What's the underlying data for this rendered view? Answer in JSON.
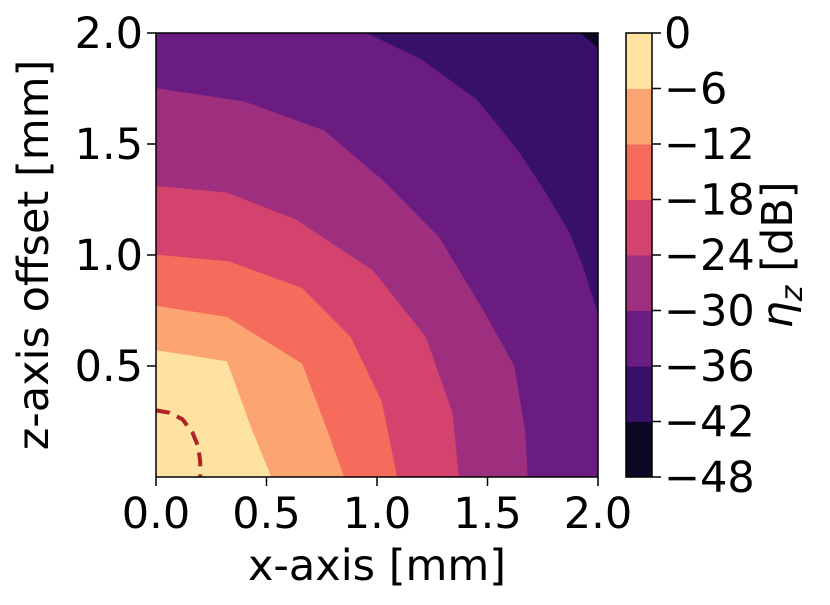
{
  "chart_data": {
    "type": "contour",
    "xlabel": "x-axis [mm]",
    "ylabel": "z-axis offset [mm]",
    "colorbar_label": "η_z [dB]",
    "xlim": [
      0.0,
      2.0
    ],
    "ylim": [
      0.0,
      2.0
    ],
    "x_ticks": [
      "0.0",
      "0.5",
      "1.0",
      "1.5",
      "2.0"
    ],
    "y_ticks": [
      "0.5",
      "1.0",
      "1.5",
      "2.0"
    ],
    "grid": false,
    "colorbar": {
      "levels": [
        -48,
        -42,
        -36,
        -30,
        -24,
        -18,
        -12,
        -6,
        0
      ],
      "tick_labels": [
        "−48",
        "−42",
        "−36",
        "−30",
        "−24",
        "−18",
        "−12",
        "−6",
        "0"
      ],
      "colors": [
        "#0c0826",
        "#37106a",
        "#6b1c80",
        "#9e2f7f",
        "#d3436e",
        "#f56b5c",
        "#fca472",
        "#fde2a2"
      ],
      "colormap": "magma"
    },
    "contour_boundaries": [
      {
        "level": -6,
        "points": [
          [
            0.0,
            0.57
          ],
          [
            0.32,
            0.52
          ],
          [
            0.43,
            0.22
          ],
          [
            0.52,
            0.0
          ]
        ]
      },
      {
        "level": -12,
        "points": [
          [
            0.0,
            0.77
          ],
          [
            0.32,
            0.72
          ],
          [
            0.66,
            0.51
          ],
          [
            0.77,
            0.22
          ],
          [
            0.85,
            0.0
          ]
        ]
      },
      {
        "level": -18,
        "points": [
          [
            0.0,
            1.0
          ],
          [
            0.33,
            0.97
          ],
          [
            0.66,
            0.85
          ],
          [
            0.88,
            0.63
          ],
          [
            1.02,
            0.34
          ],
          [
            1.09,
            0.0
          ]
        ]
      },
      {
        "level": -24,
        "points": [
          [
            0.0,
            1.31
          ],
          [
            0.32,
            1.28
          ],
          [
            0.63,
            1.16
          ],
          [
            0.98,
            0.93
          ],
          [
            1.22,
            0.63
          ],
          [
            1.34,
            0.29
          ],
          [
            1.37,
            0.0
          ]
        ]
      },
      {
        "level": -30,
        "points": [
          [
            0.0,
            1.75
          ],
          [
            0.4,
            1.69
          ],
          [
            0.76,
            1.56
          ],
          [
            1.02,
            1.34
          ],
          [
            1.28,
            1.08
          ],
          [
            1.48,
            0.75
          ],
          [
            1.62,
            0.5
          ],
          [
            1.67,
            0.2
          ],
          [
            1.68,
            0.0
          ]
        ]
      },
      {
        "level": -36,
        "points": [
          [
            0.95,
            2.0
          ],
          [
            1.2,
            1.88
          ],
          [
            1.45,
            1.7
          ],
          [
            1.63,
            1.48
          ],
          [
            1.75,
            1.3
          ],
          [
            1.87,
            1.1
          ],
          [
            1.93,
            0.95
          ],
          [
            2.0,
            0.73
          ]
        ]
      },
      {
        "level": -42,
        "points": [
          [
            1.92,
            2.0
          ],
          [
            2.0,
            1.93
          ]
        ]
      }
    ],
    "annotation": {
      "style": "dashed",
      "color": "#b22222",
      "points": [
        [
          0.0,
          0.3
        ],
        [
          0.06,
          0.29
        ],
        [
          0.12,
          0.26
        ],
        [
          0.165,
          0.2
        ],
        [
          0.19,
          0.14
        ],
        [
          0.2,
          0.07
        ],
        [
          0.2,
          0.0
        ]
      ]
    }
  }
}
